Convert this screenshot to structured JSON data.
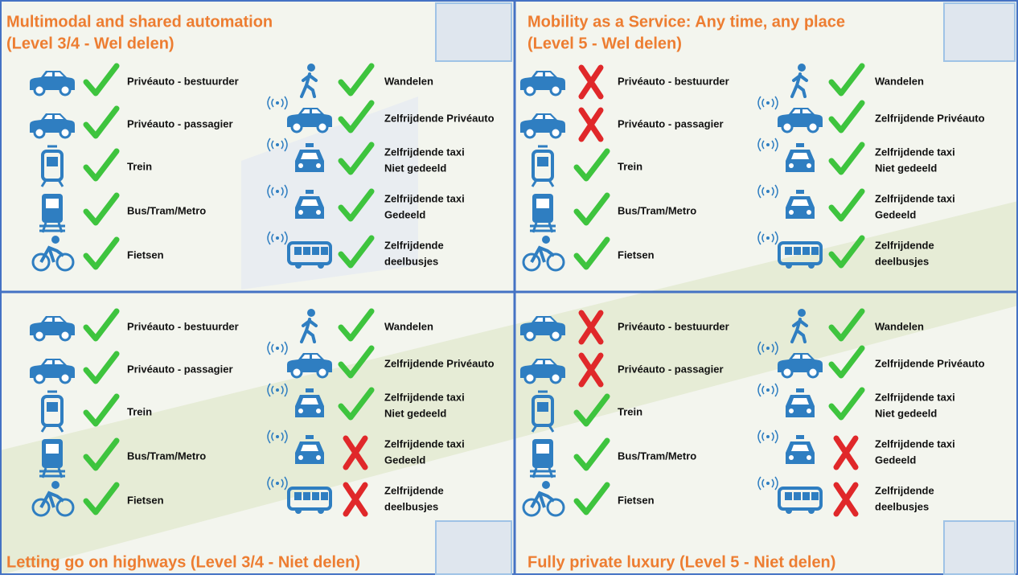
{
  "quadrants": [
    {
      "title": [
        "Multimodal and shared automation",
        "(Level 3/4 - Wel delen)"
      ],
      "items": [
        {
          "label": [
            "Privéauto - bestuurder"
          ],
          "available": true
        },
        {
          "label": [
            "Privéauto - passagier"
          ],
          "available": true
        },
        {
          "label": [
            "Trein"
          ],
          "available": true
        },
        {
          "label": [
            "Bus/Tram/Metro"
          ],
          "available": true
        },
        {
          "label": [
            "Fietsen"
          ],
          "available": true
        },
        {
          "label": [
            "Wandelen"
          ],
          "available": true
        },
        {
          "label": [
            "Zelfrijdende Privéauto"
          ],
          "available": true
        },
        {
          "label": [
            "Zelfrijdende taxi",
            "Niet gedeeld"
          ],
          "available": true
        },
        {
          "label": [
            "Zelfrijdende taxi",
            "Gedeeld"
          ],
          "available": true
        },
        {
          "label": [
            "Zelfrijdende",
            "deelbusjes"
          ],
          "available": true
        }
      ]
    },
    {
      "title": [
        "Mobility as a Service: Any time, any place",
        "(Level 5 - Wel delen)"
      ],
      "items": [
        {
          "label": [
            "Privéauto - bestuurder"
          ],
          "available": false
        },
        {
          "label": [
            "Privéauto - passagier"
          ],
          "available": false
        },
        {
          "label": [
            "Trein"
          ],
          "available": true
        },
        {
          "label": [
            "Bus/Tram/Metro"
          ],
          "available": true
        },
        {
          "label": [
            "Fietsen"
          ],
          "available": true
        },
        {
          "label": [
            "Wandelen"
          ],
          "available": true
        },
        {
          "label": [
            "Zelfrijdende Privéauto"
          ],
          "available": true
        },
        {
          "label": [
            "Zelfrijdende taxi",
            "Niet gedeeld"
          ],
          "available": true
        },
        {
          "label": [
            "Zelfrijdende taxi",
            "Gedeeld"
          ],
          "available": true
        },
        {
          "label": [
            "Zelfrijdende",
            "deelbusjes"
          ],
          "available": true
        }
      ]
    },
    {
      "title": [
        "Letting go on highways (Level 3/4 - Niet delen)"
      ],
      "items": [
        {
          "label": [
            "Privéauto - bestuurder"
          ],
          "available": true
        },
        {
          "label": [
            "Privéauto - passagier"
          ],
          "available": true
        },
        {
          "label": [
            "Trein"
          ],
          "available": true
        },
        {
          "label": [
            "Bus/Tram/Metro"
          ],
          "available": true
        },
        {
          "label": [
            "Fietsen"
          ],
          "available": true
        },
        {
          "label": [
            "Wandelen"
          ],
          "available": true
        },
        {
          "label": [
            "Zelfrijdende Privéauto"
          ],
          "available": true
        },
        {
          "label": [
            "Zelfrijdende taxi",
            "Niet gedeeld"
          ],
          "available": true
        },
        {
          "label": [
            "Zelfrijdende taxi",
            "Gedeeld"
          ],
          "available": false
        },
        {
          "label": [
            "Zelfrijdende",
            "deelbusjes"
          ],
          "available": false
        }
      ]
    },
    {
      "title": [
        "Fully private luxury (Level 5 - Niet delen)"
      ],
      "items": [
        {
          "label": [
            "Privéauto - bestuurder"
          ],
          "available": false
        },
        {
          "label": [
            "Privéauto - passagier"
          ],
          "available": false
        },
        {
          "label": [
            "Trein"
          ],
          "available": true
        },
        {
          "label": [
            "Bus/Tram/Metro"
          ],
          "available": true
        },
        {
          "label": [
            "Fietsen"
          ],
          "available": true
        },
        {
          "label": [
            "Wandelen"
          ],
          "available": true
        },
        {
          "label": [
            "Zelfrijdende Privéauto"
          ],
          "available": true
        },
        {
          "label": [
            "Zelfrijdende taxi",
            "Niet gedeeld"
          ],
          "available": true
        },
        {
          "label": [
            "Zelfrijdende taxi",
            "Gedeeld"
          ],
          "available": false
        },
        {
          "label": [
            "Zelfrijdende",
            "deelbusjes"
          ],
          "available": false
        }
      ]
    }
  ]
}
